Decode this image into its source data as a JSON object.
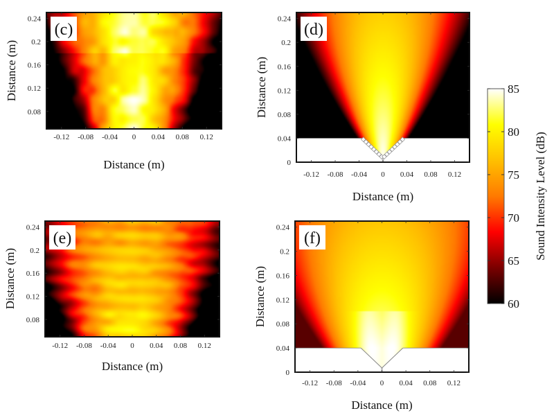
{
  "chart_data": [
    {
      "type": "heatmap",
      "panel_label": "(c)",
      "xlabel": "Distance (m)",
      "ylabel": "Distance (m)",
      "xticks": [
        "-0.12",
        "-0.08",
        "-0.04",
        "0",
        "0.04",
        "0.08",
        "0.12"
      ],
      "yticks": [
        "0.24",
        "0.2",
        "0.16",
        "0.12",
        "0.08"
      ],
      "xlim": [
        -0.145,
        0.145
      ],
      "ylim": [
        0.05,
        0.25
      ],
      "pattern": "measured-noisy",
      "peak_dB": 84,
      "edge_dB": 60,
      "has_transducer": false
    },
    {
      "type": "heatmap",
      "panel_label": "(d)",
      "xlabel": "Distance (m)",
      "ylabel": "Distance (m)",
      "xticks": [
        "-0.12",
        "-0.08",
        "-0.04",
        "0",
        "0.04",
        "0.08",
        "0.12"
      ],
      "yticks": [
        "0.24",
        "0.2",
        "0.16",
        "0.12",
        "0.08",
        "0.04",
        "0"
      ],
      "xlim": [
        -0.145,
        0.145
      ],
      "ylim": [
        0,
        0.25
      ],
      "pattern": "simulated-narrow-beam",
      "peak_dB": 85,
      "edge_dB": 60,
      "has_transducer": true,
      "transducer_style": "element-array"
    },
    {
      "type": "heatmap",
      "panel_label": "(e)",
      "xlabel": "Distance (m)",
      "ylabel": "Distance (m)",
      "xticks": [
        "-0.12",
        "-0.08",
        "-0.04",
        "0",
        "0.04",
        "0.08",
        "0.12"
      ],
      "yticks": [
        "0.24",
        "0.2",
        "0.16",
        "0.12",
        "0.08"
      ],
      "xlim": [
        -0.145,
        0.145
      ],
      "ylim": [
        0.05,
        0.25
      ],
      "pattern": "measured-wide-banded",
      "peak_dB": 80,
      "edge_dB": 64,
      "has_transducer": false
    },
    {
      "type": "heatmap",
      "panel_label": "(f)",
      "xlabel": "Distance (m)",
      "ylabel": "Distance (m)",
      "xticks": [
        "-0.12",
        "-0.08",
        "-0.04",
        "0",
        "0.04",
        "0.08",
        "0.12"
      ],
      "yticks": [
        "0.24",
        "0.2",
        "0.16",
        "0.12",
        "0.08",
        "0.04",
        "0"
      ],
      "xlim": [
        -0.145,
        0.145
      ],
      "ylim": [
        0,
        0.25
      ],
      "pattern": "simulated-wide-beam",
      "peak_dB": 84,
      "edge_dB": 65,
      "has_transducer": true,
      "transducer_style": "smooth-horn"
    }
  ],
  "colorbar": {
    "label": "Sound Intensity Level (dB)",
    "ticks": [
      "85",
      "80",
      "75",
      "70",
      "65",
      "60"
    ],
    "range": [
      60,
      85
    ],
    "colors": [
      "#000000",
      "#7a0000",
      "#ff0000",
      "#ff7a00",
      "#ffc000",
      "#ffff00",
      "#ffffff"
    ]
  }
}
